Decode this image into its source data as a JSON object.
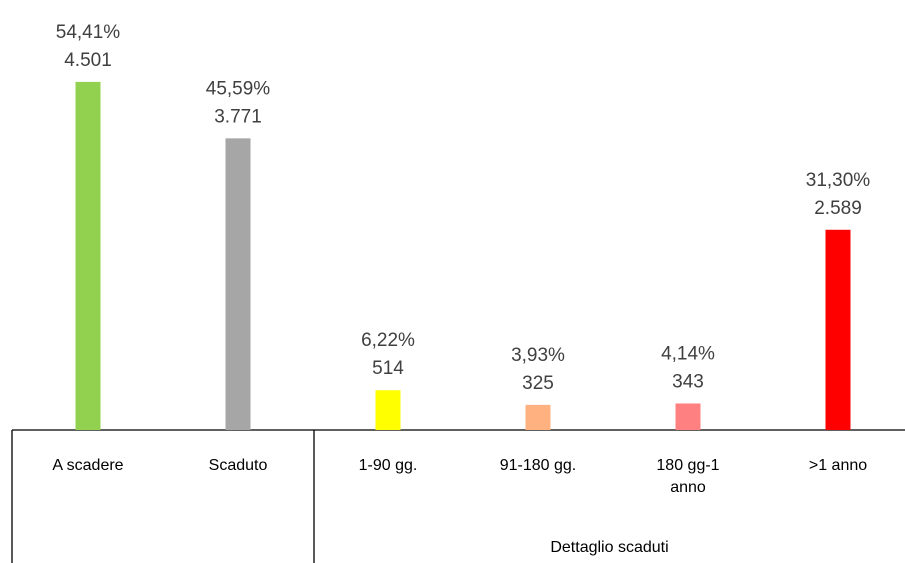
{
  "chart_data": {
    "type": "bar",
    "categories": [
      "A scadere",
      "Scaduto",
      "1-90 gg.",
      "91-180 gg.",
      "180 gg-1 anno",
      ">1 anno"
    ],
    "values": [
      4501,
      3771,
      514,
      325,
      343,
      2589
    ],
    "value_labels": [
      "4.501",
      "3.771",
      "514",
      "325",
      "343",
      "2.589"
    ],
    "shares": [
      54.41,
      45.59,
      6.22,
      3.93,
      4.14,
      31.3
    ],
    "share_labels": [
      "54,41%",
      "45,59%",
      "6,22%",
      "3,93%",
      "4,14%",
      "31,30%"
    ],
    "colors": [
      "#92d050",
      "#a6a6a6",
      "#ffff00",
      "#ffb27f",
      "#ff8080",
      "#ff0000"
    ],
    "group_label": "Dettaglio scaduti",
    "ylim": [
      0,
      5000
    ]
  }
}
